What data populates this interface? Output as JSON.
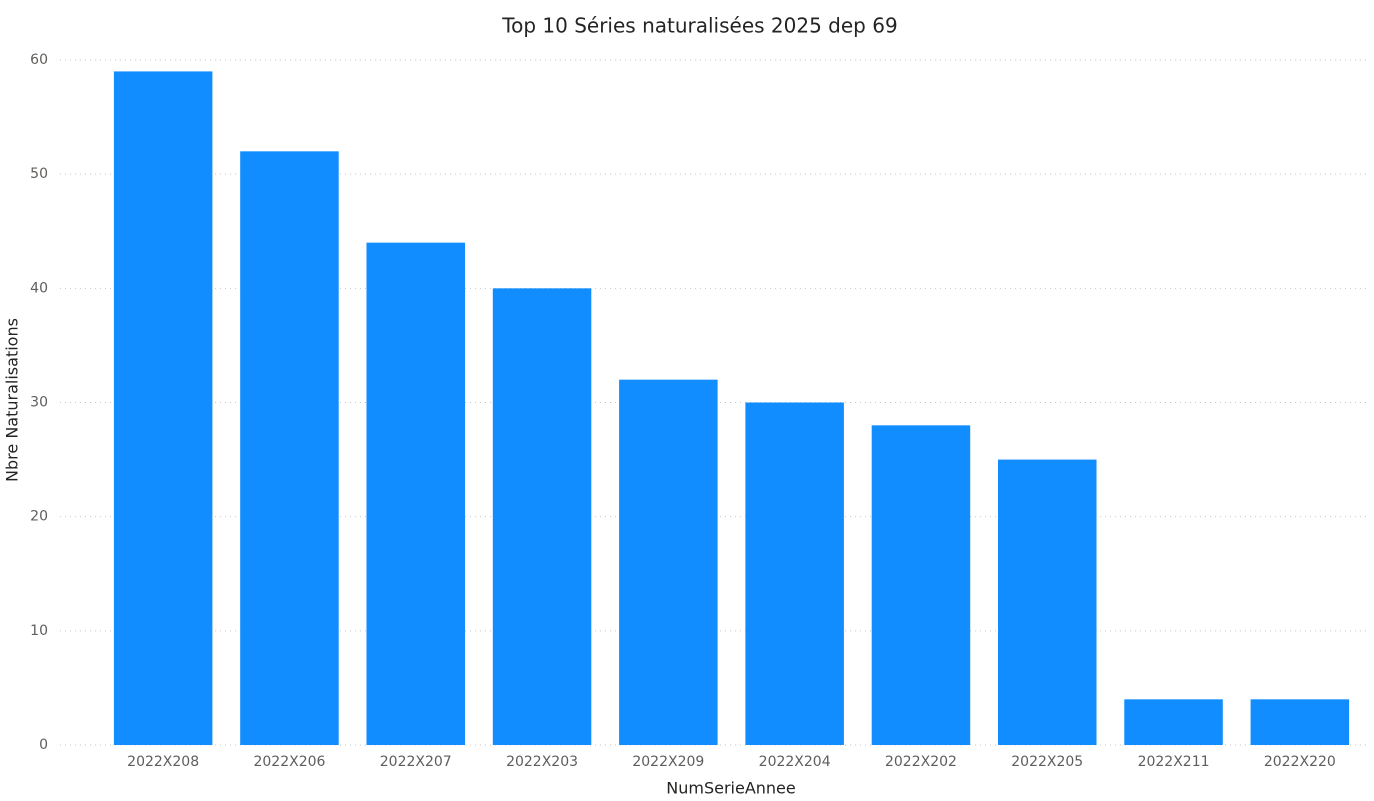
{
  "chart_data": {
    "type": "bar",
    "title": "Top 10 Séries naturalisées 2025 dep 69",
    "x_label": "NumSerieAnnee",
    "y_label": "Nbre Naturalisations",
    "categories": [
      "2022X208",
      "2022X206",
      "2022X207",
      "2022X203",
      "2022X209",
      "2022X204",
      "2022X202",
      "2022X205",
      "2022X211",
      "2022X220"
    ],
    "values": [
      59,
      52,
      44,
      40,
      32,
      30,
      28,
      25,
      4,
      4
    ],
    "color": "#118dff",
    "ylim": [
      0,
      60
    ],
    "yticks": [
      0,
      10,
      20,
      30,
      40,
      50,
      60
    ],
    "grid": true
  }
}
